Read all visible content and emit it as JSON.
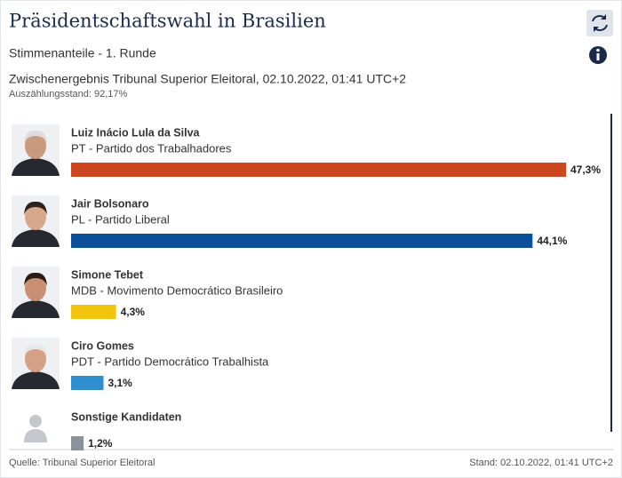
{
  "chart_data": {
    "type": "bar",
    "title": "Präsidentschaftswahl in Brasilien",
    "subtitle": "Stimmenanteile - 1. Runde",
    "note": "Zwischenergebnis Tribunal Superior Eleitoral, 02.10.2022, 01:41 UTC+2",
    "count_status": "Auszählungsstand: 92,17%",
    "categories": [
      "Luiz Inácio Lula da Silva",
      "Jair Bolsonaro",
      "Simone Tebet",
      "Ciro Gomes",
      "Sonstige Kandidaten"
    ],
    "parties": [
      "PT - Partido dos Trabalhadores",
      "PL - Partido Liberal",
      "MDB - Movimento Democrático Brasileiro",
      "PDT - Partido Democrático Trabalhista",
      null
    ],
    "values": [
      47.3,
      44.1,
      4.3,
      3.1,
      1.2
    ],
    "value_labels": [
      "47,3%",
      "44,1%",
      "4,3%",
      "3,1%",
      "1,2%"
    ],
    "colors": [
      "#cf4520",
      "#0b4f9a",
      "#f1c40f",
      "#2e8fd0",
      "#8a939c"
    ],
    "source": "Quelle: Tribunal Superior Eleitoral",
    "timestamp": "Stand: 02.10.2022, 01:41 UTC+2"
  }
}
